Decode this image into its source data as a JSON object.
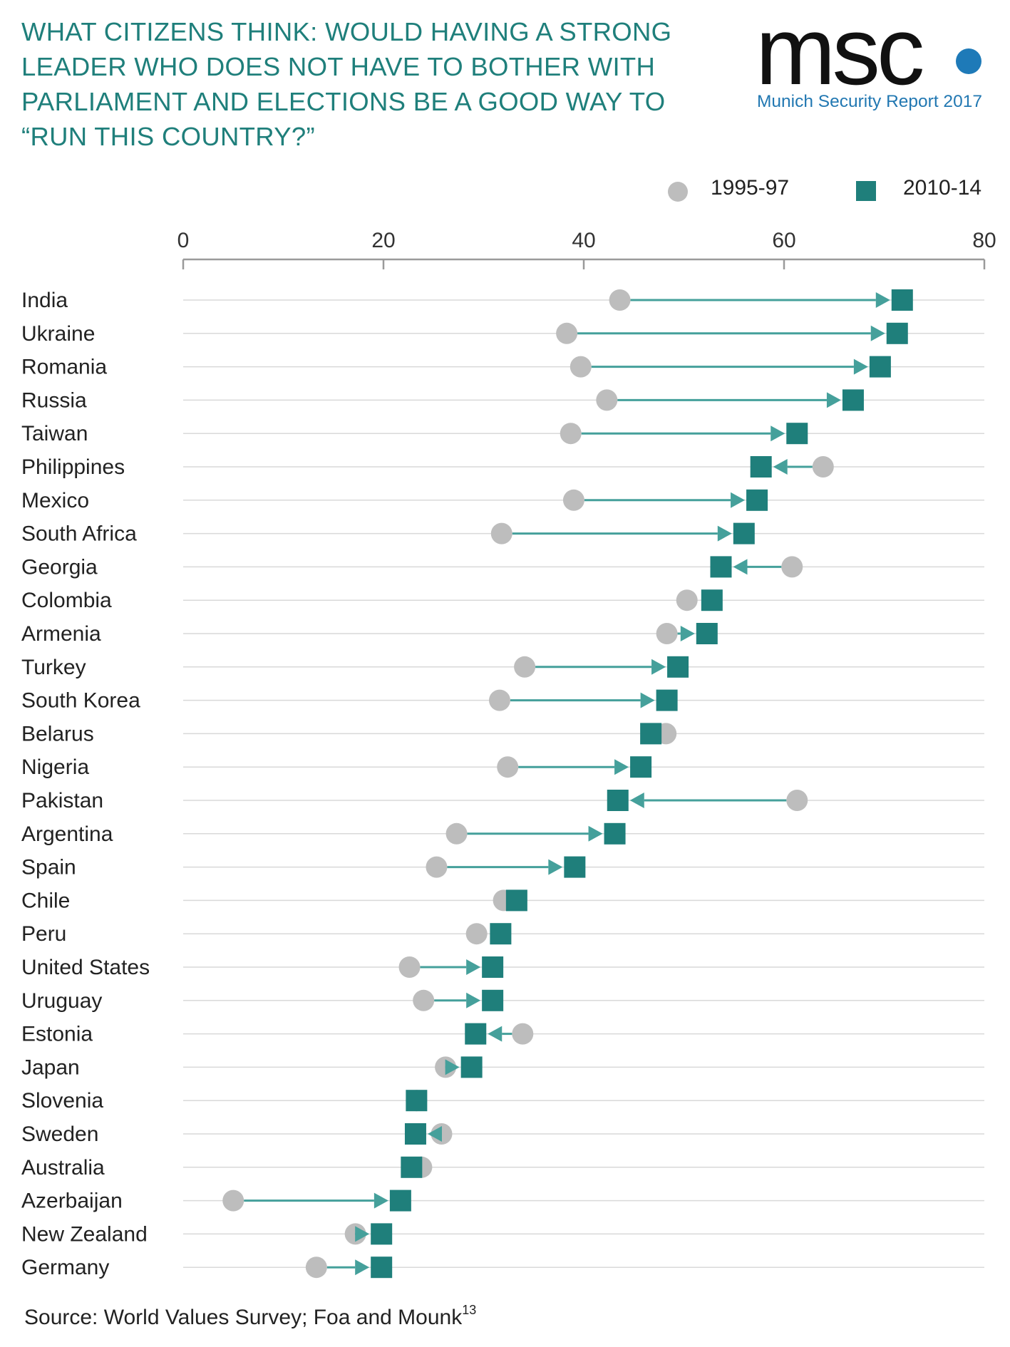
{
  "title_lines": [
    "WHAT CITIZENS THINK: WOULD HAVING A STRONG",
    "LEADER WHO DOES NOT HAVE TO BOTHER WITH",
    "PARLIAMENT AND ELECTIONS BE A GOOD WAY TO",
    "“RUN THIS COUNTRY?”"
  ],
  "logo": {
    "wordmark": "msc",
    "subtitle": "Munich Security Report 2017"
  },
  "source": {
    "text": "Source: World Values Survey; Foa and Mounk",
    "footnote": "13"
  },
  "colors": {
    "title": "#1f7f7b",
    "early": "#bdbdbd",
    "late": "#1f7f7b",
    "arrow": "#45a09b",
    "grid": "#d9d9d9",
    "axis": "#9a9a9a"
  },
  "chart_data": {
    "type": "dot-arrow",
    "xlim": [
      0,
      80
    ],
    "xticks": [
      0,
      20,
      40,
      60,
      80
    ],
    "series": [
      {
        "name": "1995-97",
        "marker": "circle",
        "color": "#bdbdbd"
      },
      {
        "name": "2010-14",
        "marker": "square",
        "color": "#1f7f7b"
      }
    ],
    "legend_position": "top-right",
    "rows": [
      {
        "country": "India",
        "early": 43.6,
        "late": 71.8
      },
      {
        "country": "Ukraine",
        "early": 38.3,
        "late": 71.3
      },
      {
        "country": "Romania",
        "early": 39.7,
        "late": 69.6
      },
      {
        "country": "Russia",
        "early": 42.3,
        "late": 66.9
      },
      {
        "country": "Taiwan",
        "early": 38.7,
        "late": 61.3
      },
      {
        "country": "Philippines",
        "early": 63.9,
        "late": 57.7
      },
      {
        "country": "Mexico",
        "early": 39.0,
        "late": 57.3
      },
      {
        "country": "South Africa",
        "early": 31.8,
        "late": 56.0
      },
      {
        "country": "Georgia",
        "early": 60.8,
        "late": 53.7
      },
      {
        "country": "Colombia",
        "early": 50.3,
        "late": 52.8
      },
      {
        "country": "Armenia",
        "early": 48.3,
        "late": 52.3
      },
      {
        "country": "Turkey",
        "early": 34.1,
        "late": 49.4
      },
      {
        "country": "South Korea",
        "early": 31.6,
        "late": 48.3
      },
      {
        "country": "Belarus",
        "early": 48.2,
        "late": 46.7
      },
      {
        "country": "Nigeria",
        "early": 32.4,
        "late": 45.7
      },
      {
        "country": "Pakistan",
        "early": 61.3,
        "late": 43.4
      },
      {
        "country": "Argentina",
        "early": 27.3,
        "late": 43.1
      },
      {
        "country": "Spain",
        "early": 25.3,
        "late": 39.1
      },
      {
        "country": "Chile",
        "early": 32.0,
        "late": 33.3
      },
      {
        "country": "Peru",
        "early": 29.3,
        "late": 31.7
      },
      {
        "country": "United States",
        "early": 22.6,
        "late": 30.9
      },
      {
        "country": "Uruguay",
        "early": 24.0,
        "late": 30.9
      },
      {
        "country": "Estonia",
        "early": 33.9,
        "late": 29.2
      },
      {
        "country": "Japan",
        "early": 26.2,
        "late": 28.8
      },
      {
        "country": "Slovenia",
        "early": 23.3,
        "late": 23.3
      },
      {
        "country": "Sweden",
        "early": 25.8,
        "late": 23.2
      },
      {
        "country": "Australia",
        "early": 23.8,
        "late": 22.8
      },
      {
        "country": "Azerbaijan",
        "early": 5.0,
        "late": 21.7
      },
      {
        "country": "New Zealand",
        "early": 17.2,
        "late": 19.8
      },
      {
        "country": "Germany",
        "early": 13.3,
        "late": 19.8
      }
    ]
  }
}
